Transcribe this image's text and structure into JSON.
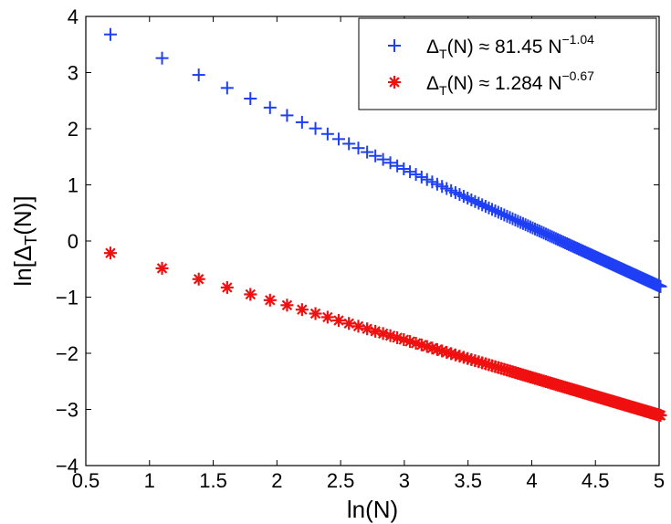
{
  "chart_data": {
    "type": "scatter",
    "xlabel": "ln(N)",
    "ylabel_prefix": "ln[Δ",
    "ylabel_sub": "T",
    "ylabel_suffix": "(N)]",
    "xlim": [
      0.5,
      5.0
    ],
    "ylim": [
      -4,
      4
    ],
    "xticks": [
      0.5,
      1,
      1.5,
      2,
      2.5,
      3,
      3.5,
      4,
      4.5,
      5
    ],
    "xtick_labels": [
      "0.5",
      "1",
      "1.5",
      "2",
      "2.5",
      "3",
      "3.5",
      "4",
      "4.5",
      "5"
    ],
    "yticks": [
      -4,
      -3,
      -2,
      -1,
      0,
      1,
      2,
      3,
      4
    ],
    "ytick_labels": [
      "−4",
      "−3",
      "−2",
      "−1",
      "0",
      "1",
      "2",
      "3",
      "4"
    ],
    "grid": false,
    "legend_position": "top-right",
    "n_range": [
      2,
      150
    ],
    "series": [
      {
        "name": "blue-plus",
        "marker": "plus",
        "color": "#1f3ff5",
        "coef": 81.45,
        "exponent": -1.04,
        "legend_prefix": "Δ",
        "legend_sub": "T",
        "legend_mid": "(N) ≈ 81.45 N",
        "legend_sup": "−1.04"
      },
      {
        "name": "red-star",
        "marker": "asterisk",
        "color": "#f01010",
        "coef": 1.284,
        "exponent": -0.67,
        "legend_prefix": "Δ",
        "legend_sub": "T",
        "legend_mid": "(N) ≈ 1.284 N",
        "legend_sup": "−0.67"
      }
    ]
  }
}
